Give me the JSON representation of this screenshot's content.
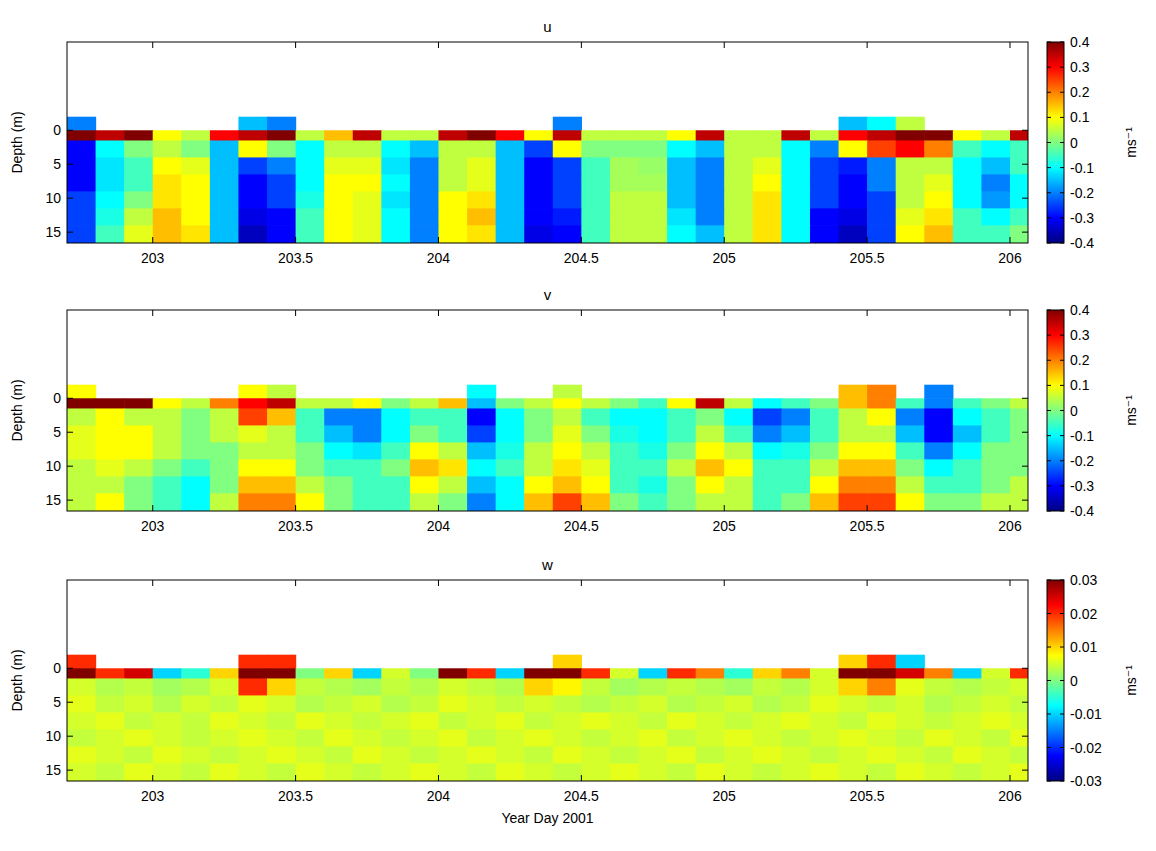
{
  "chart_data": [
    {
      "type": "heatmap",
      "title": "u",
      "ylabel": "Depth (m)",
      "xlim": [
        202.7,
        206.063
      ],
      "ylim": [
        -13,
        16.6
      ],
      "xticks": [
        203,
        203.5,
        204,
        204.5,
        205,
        205.5,
        206
      ],
      "yticks": [
        0,
        5,
        10,
        15
      ],
      "x_edges": [
        202.7,
        202.8,
        202.9,
        203,
        203.1,
        203.2,
        203.3,
        203.4,
        203.5,
        203.6,
        203.7,
        203.8,
        203.9,
        204,
        204.1,
        204.2,
        204.3,
        204.4,
        204.5,
        204.6,
        204.7,
        204.8,
        204.9,
        205,
        205.1,
        205.2,
        205.3,
        205.4,
        205.5,
        205.6,
        205.7,
        205.8,
        205.9,
        206,
        206.1
      ],
      "y_edges": [
        -2,
        0,
        1.5,
        4,
        6.5,
        9,
        11.5,
        14,
        16.6
      ],
      "cells": [
        [
          -0.2,
          null,
          null,
          null,
          null,
          null,
          -0.15,
          -0.2,
          null,
          null,
          null,
          null,
          null,
          null,
          null,
          null,
          null,
          -0.2,
          null,
          null,
          null,
          null,
          null,
          null,
          null,
          null,
          null,
          -0.15,
          -0.1,
          0.05,
          null,
          null,
          null,
          null
        ],
        [
          0.4,
          0.35,
          0.4,
          0.1,
          0.05,
          0.3,
          0.35,
          0.4,
          0.05,
          0.15,
          0.35,
          0.05,
          0.05,
          0.35,
          0.4,
          0.3,
          0.1,
          0.35,
          0.05,
          0.05,
          0.05,
          0.1,
          0.35,
          0.05,
          0.05,
          0.35,
          0.05,
          0.3,
          0.35,
          0.4,
          0.4,
          0.1,
          0.05,
          0.35
        ],
        [
          -0.3,
          -0.1,
          0,
          0.05,
          0,
          -0.15,
          0.1,
          0,
          -0.1,
          0.05,
          0.05,
          -0.1,
          -0.15,
          0.05,
          0.05,
          -0.15,
          -0.25,
          0.1,
          0,
          0,
          0,
          -0.1,
          -0.15,
          0.05,
          0.05,
          -0.1,
          -0.2,
          0.1,
          0.25,
          0.3,
          0.2,
          -0.05,
          -0.1,
          -0.05
        ],
        [
          -0.3,
          -0.12,
          -0.05,
          0.1,
          0.08,
          -0.15,
          -0.25,
          -0.2,
          -0.1,
          0.08,
          0.08,
          -0.12,
          -0.2,
          0.05,
          0.08,
          -0.15,
          -0.3,
          -0.25,
          -0.05,
          0.03,
          0.02,
          -0.15,
          -0.2,
          0.05,
          0.08,
          -0.1,
          -0.25,
          -0.28,
          -0.2,
          0.05,
          0.05,
          -0.1,
          -0.15,
          -0.05
        ],
        [
          -0.3,
          -0.12,
          -0.05,
          0.12,
          0.1,
          -0.15,
          -0.3,
          -0.25,
          -0.1,
          0.1,
          0.1,
          -0.1,
          -0.2,
          0.05,
          0.08,
          -0.15,
          -0.3,
          -0.25,
          -0.05,
          0.03,
          0.03,
          -0.15,
          -0.2,
          0.05,
          0.1,
          -0.1,
          -0.25,
          -0.3,
          -0.2,
          0.05,
          0.08,
          -0.1,
          -0.2,
          -0.1
        ],
        [
          -0.25,
          -0.1,
          0,
          0.12,
          0.1,
          -0.15,
          -0.3,
          -0.25,
          -0.08,
          0.1,
          0.08,
          -0.12,
          -0.2,
          0.1,
          0.12,
          -0.15,
          -0.3,
          -0.25,
          -0.05,
          0.05,
          0.05,
          -0.15,
          -0.2,
          0.05,
          0.12,
          -0.1,
          -0.25,
          -0.3,
          -0.25,
          0.05,
          0.1,
          -0.1,
          -0.18,
          -0.1
        ],
        [
          -0.25,
          -0.08,
          0.05,
          0.15,
          0.1,
          -0.15,
          -0.32,
          -0.3,
          -0.05,
          0.1,
          0.08,
          -0.1,
          -0.2,
          0.1,
          0.15,
          -0.15,
          -0.3,
          -0.28,
          -0.05,
          0.05,
          0.05,
          -0.12,
          -0.2,
          0.05,
          0.12,
          -0.1,
          -0.3,
          -0.32,
          -0.25,
          0.08,
          0.12,
          -0.05,
          -0.1,
          -0.05
        ],
        [
          -0.25,
          -0.05,
          0.08,
          0.15,
          0.12,
          -0.15,
          -0.35,
          -0.3,
          -0.05,
          0.1,
          0.08,
          -0.1,
          -0.2,
          0.1,
          0.12,
          -0.15,
          -0.32,
          -0.3,
          -0.05,
          0.05,
          0.05,
          -0.1,
          -0.15,
          0.05,
          0.12,
          -0.1,
          -0.3,
          -0.35,
          -0.25,
          0.1,
          0.15,
          -0.05,
          -0.05,
          0
        ]
      ],
      "colorbar": {
        "range": [
          -0.4,
          0.4
        ],
        "ticks": [
          -0.4,
          -0.3,
          -0.2,
          -0.1,
          0,
          0.1,
          0.2,
          0.3,
          0.4
        ],
        "label": "ms⁻¹"
      }
    },
    {
      "type": "heatmap",
      "title": "v",
      "ylabel": "Depth (m)",
      "xlim": [
        202.7,
        206.063
      ],
      "ylim": [
        -13,
        16.6
      ],
      "xticks": [
        203,
        203.5,
        204,
        204.5,
        205,
        205.5,
        206
      ],
      "yticks": [
        0,
        5,
        10,
        15
      ],
      "x_edges": [
        202.7,
        202.8,
        202.9,
        203,
        203.1,
        203.2,
        203.3,
        203.4,
        203.5,
        203.6,
        203.7,
        203.8,
        203.9,
        204,
        204.1,
        204.2,
        204.3,
        204.4,
        204.5,
        204.6,
        204.7,
        204.8,
        204.9,
        205,
        205.1,
        205.2,
        205.3,
        205.4,
        205.5,
        205.6,
        205.7,
        205.8,
        205.9,
        206,
        206.1
      ],
      "y_edges": [
        -2,
        0,
        1.5,
        4,
        6.5,
        9,
        11.5,
        14,
        16.6
      ],
      "cells": [
        [
          0.1,
          null,
          null,
          null,
          null,
          null,
          0.1,
          0.05,
          null,
          null,
          null,
          null,
          null,
          null,
          -0.1,
          null,
          null,
          0.05,
          null,
          null,
          null,
          null,
          null,
          null,
          null,
          null,
          null,
          0.15,
          0.2,
          null,
          -0.2,
          null,
          null,
          null
        ],
        [
          0.4,
          0.4,
          0.4,
          0.1,
          0.05,
          0.2,
          0.3,
          0.35,
          0.05,
          0.05,
          0.1,
          0,
          0.05,
          0.15,
          -0.15,
          0,
          0.05,
          0.1,
          0.05,
          0,
          -0.05,
          0.1,
          0.35,
          0.05,
          -0.1,
          -0.05,
          0,
          0.15,
          0.2,
          -0.05,
          -0.2,
          -0.05,
          0,
          0.05
        ],
        [
          0.05,
          0.1,
          0.05,
          0.05,
          0,
          0.05,
          0.25,
          0.15,
          -0.05,
          -0.2,
          -0.2,
          -0.1,
          -0.05,
          -0.05,
          -0.3,
          -0.1,
          0,
          0.05,
          -0.05,
          -0.1,
          -0.1,
          -0.05,
          0,
          -0.1,
          -0.25,
          -0.2,
          -0.05,
          0.05,
          0.1,
          -0.2,
          -0.3,
          -0.1,
          -0.05,
          0
        ],
        [
          0.08,
          0.1,
          0.1,
          0.05,
          0,
          0.05,
          0.08,
          0.05,
          -0.05,
          -0.15,
          -0.2,
          -0.1,
          0,
          -0.05,
          -0.25,
          -0.1,
          0,
          0.08,
          0,
          -0.08,
          -0.1,
          -0.05,
          0.05,
          -0.05,
          -0.2,
          -0.15,
          -0.05,
          0.05,
          0.05,
          -0.15,
          -0.3,
          -0.15,
          -0.05,
          0
        ],
        [
          0.08,
          0.1,
          0.1,
          0.05,
          0,
          0,
          0.05,
          0.05,
          0,
          -0.1,
          -0.12,
          -0.05,
          0.1,
          0.05,
          -0.15,
          -0.08,
          0.05,
          0.1,
          0.05,
          -0.05,
          -0.08,
          0,
          0.1,
          0.05,
          -0.1,
          -0.08,
          0,
          0.1,
          0.1,
          -0.05,
          -0.2,
          -0.1,
          0,
          0
        ],
        [
          0.05,
          0.08,
          0.05,
          0,
          -0.05,
          0,
          0.1,
          0.1,
          0,
          -0.05,
          -0.05,
          0,
          0.15,
          0.12,
          -0.1,
          -0.05,
          0.05,
          0.12,
          0.08,
          -0.05,
          -0.05,
          0.05,
          0.15,
          0.1,
          -0.05,
          -0.05,
          0.05,
          0.15,
          0.15,
          0,
          -0.1,
          -0.05,
          0,
          0
        ],
        [
          0.05,
          0.05,
          0,
          -0.05,
          -0.1,
          0,
          0.15,
          0.15,
          0.05,
          0,
          -0.05,
          -0.05,
          0.1,
          0.05,
          -0.15,
          -0.1,
          0.1,
          0.15,
          0.1,
          -0.05,
          -0.08,
          0,
          0.1,
          0.05,
          -0.05,
          -0.05,
          0.1,
          0.2,
          0.2,
          0.05,
          -0.05,
          -0.05,
          0,
          0.05
        ],
        [
          0.05,
          0.1,
          0,
          -0.05,
          -0.1,
          0.05,
          0.2,
          0.2,
          0.1,
          0,
          -0.05,
          -0.05,
          0.05,
          0,
          -0.2,
          -0.1,
          0.15,
          0.25,
          0.15,
          0,
          -0.05,
          0,
          0.05,
          0.05,
          -0.05,
          0,
          0.15,
          0.25,
          0.25,
          0.1,
          0,
          0,
          0.05,
          0.05
        ]
      ],
      "colorbar": {
        "range": [
          -0.4,
          0.4
        ],
        "ticks": [
          -0.4,
          -0.3,
          -0.2,
          -0.1,
          0,
          0.1,
          0.2,
          0.3,
          0.4
        ],
        "label": "ms⁻¹"
      }
    },
    {
      "type": "heatmap",
      "title": "w",
      "ylabel": "Depth (m)",
      "xlabel": "Year Day 2001",
      "xlim": [
        202.7,
        206.063
      ],
      "ylim": [
        -13,
        16.6
      ],
      "xticks": [
        203,
        203.5,
        204,
        204.5,
        205,
        205.5,
        206
      ],
      "yticks": [
        0,
        5,
        10,
        15
      ],
      "x_edges": [
        202.7,
        202.8,
        202.9,
        203,
        203.1,
        203.2,
        203.3,
        203.4,
        203.5,
        203.6,
        203.7,
        203.8,
        203.9,
        204,
        204.1,
        204.2,
        204.3,
        204.4,
        204.5,
        204.6,
        204.7,
        204.8,
        204.9,
        205,
        205.1,
        205.2,
        205.3,
        205.4,
        205.5,
        205.6,
        205.7,
        205.8,
        205.9,
        206,
        206.1
      ],
      "y_edges": [
        -2,
        0,
        1.5,
        4,
        6.5,
        9,
        11.5,
        14,
        16.6
      ],
      "cells": [
        [
          0.02,
          null,
          null,
          null,
          null,
          null,
          0.02,
          0.02,
          null,
          null,
          null,
          null,
          null,
          null,
          null,
          null,
          null,
          0.01,
          null,
          null,
          null,
          null,
          null,
          null,
          null,
          null,
          null,
          0.01,
          0.02,
          -0.01,
          null,
          null,
          null,
          null
        ],
        [
          0.03,
          0.02,
          0.025,
          -0.01,
          -0.005,
          0.01,
          0.03,
          0.03,
          0,
          0.01,
          -0.01,
          0.005,
          0,
          0.03,
          0.02,
          -0.01,
          0.03,
          0.03,
          0.02,
          0.005,
          -0.01,
          0.02,
          0.015,
          -0.005,
          0.01,
          0.015,
          0.005,
          0.03,
          0.03,
          0.025,
          0.015,
          -0.01,
          0.005,
          0.02
        ],
        [
          0.005,
          0.003,
          0.004,
          0.002,
          0.003,
          0.005,
          0.02,
          0.01,
          0.004,
          0.003,
          0.002,
          0.004,
          0.003,
          0.005,
          0.004,
          0.003,
          0.01,
          0.008,
          0.004,
          0.002,
          0.003,
          0.004,
          0.003,
          0.002,
          0.004,
          0.003,
          0.005,
          0.01,
          0.015,
          0.006,
          0.004,
          0.003,
          0.004,
          0.005
        ],
        [
          0.006,
          0.004,
          0.005,
          0.003,
          0.005,
          0.004,
          0.006,
          0.005,
          0.003,
          0.004,
          0.005,
          0.003,
          0.004,
          0.006,
          0.005,
          0.004,
          0.005,
          0.004,
          0.003,
          0.004,
          0.005,
          0.003,
          0.004,
          0.005,
          0.003,
          0.004,
          0.006,
          0.005,
          0.004,
          0.005,
          0.003,
          0.004,
          0.005,
          0.004
        ],
        [
          0.005,
          0.006,
          0.004,
          0.005,
          0.004,
          0.006,
          0.005,
          0.004,
          0.006,
          0.005,
          0.004,
          0.005,
          0.006,
          0.004,
          0.005,
          0.006,
          0.004,
          0.005,
          0.006,
          0.005,
          0.004,
          0.006,
          0.005,
          0.004,
          0.005,
          0.006,
          0.005,
          0.004,
          0.006,
          0.005,
          0.004,
          0.005,
          0.006,
          0.005
        ],
        [
          0.004,
          0.005,
          0.006,
          0.005,
          0.004,
          0.005,
          0.006,
          0.005,
          0.004,
          0.006,
          0.005,
          0.004,
          0.005,
          0.006,
          0.004,
          0.005,
          0.006,
          0.005,
          0.004,
          0.005,
          0.006,
          0.004,
          0.005,
          0.006,
          0.005,
          0.004,
          0.005,
          0.006,
          0.005,
          0.004,
          0.006,
          0.005,
          0.004,
          0.006
        ],
        [
          0.006,
          0.005,
          0.004,
          0.006,
          0.005,
          0.004,
          0.005,
          0.006,
          0.005,
          0.004,
          0.006,
          0.005,
          0.004,
          0.005,
          0.006,
          0.005,
          0.004,
          0.006,
          0.005,
          0.004,
          0.005,
          0.006,
          0.004,
          0.005,
          0.006,
          0.005,
          0.004,
          0.005,
          0.006,
          0.005,
          0.004,
          0.006,
          0.005,
          0.004
        ],
        [
          0.005,
          0.004,
          0.006,
          0.005,
          0.004,
          0.006,
          0.005,
          0.004,
          0.006,
          0.005,
          0.004,
          0.005,
          0.006,
          0.005,
          0.004,
          0.006,
          0.005,
          0.004,
          0.005,
          0.006,
          0.005,
          0.004,
          0.006,
          0.005,
          0.004,
          0.005,
          0.006,
          0.005,
          0.004,
          0.006,
          0.005,
          0.004,
          0.005,
          0.006
        ]
      ],
      "colorbar": {
        "range": [
          -0.03,
          0.03
        ],
        "ticks": [
          -0.03,
          -0.02,
          -0.01,
          0,
          0.01,
          0.02,
          0.03
        ],
        "label": "ms⁻¹"
      }
    }
  ]
}
